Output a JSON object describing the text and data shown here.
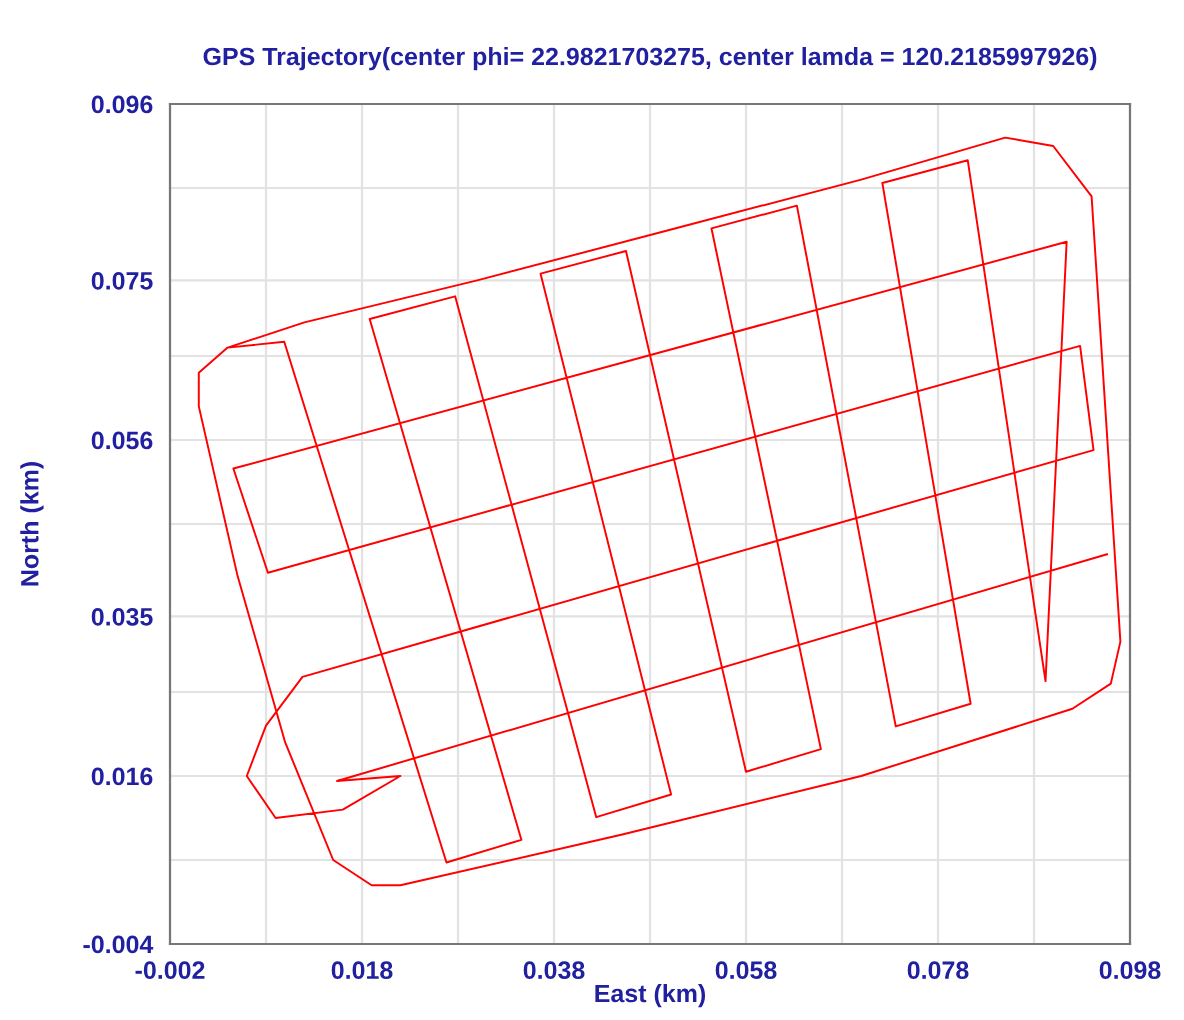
{
  "chart_data": {
    "type": "line",
    "title": "GPS Trajectory(center phi= 22.9821703275, center lamda = 120.2185997926)",
    "xlabel": "East (km)",
    "ylabel": "North (km)",
    "xlim": [
      -0.002,
      0.098
    ],
    "ylim": [
      -0.004,
      0.096
    ],
    "xticks": [
      -0.002,
      {
        "value": 0.008,
        "label": null
      },
      0.018,
      {
        "value": 0.028,
        "label": null
      },
      0.038,
      {
        "value": 0.048,
        "label": null
      },
      0.058,
      {
        "value": 0.068,
        "label": null
      },
      0.078,
      {
        "value": 0.088,
        "label": null
      },
      0.098
    ],
    "yticks": [
      -0.004,
      {
        "value": 0.006,
        "label": null
      },
      0.016,
      {
        "value": 0.026,
        "label": null
      },
      0.035,
      {
        "value": 0.046,
        "label": null
      },
      0.056,
      {
        "value": 0.066,
        "label": null
      },
      0.075,
      {
        "value": 0.086,
        "label": null
      },
      0.096
    ],
    "grid": true,
    "marker": "none",
    "line_style": "solid",
    "series": [
      {
        "color": "#ff0000",
        "x": [
          0.004,
          0.012,
          0.03,
          0.05,
          0.07,
          0.085,
          0.09,
          0.094,
          0.097,
          0.096,
          0.092,
          0.07,
          0.045,
          0.022,
          0.019,
          0.015,
          0.01,
          0.005,
          0.001,
          0.001,
          0.004,
          0.0099,
          0.0268,
          0.0346,
          0.0188,
          0.0277,
          0.0424,
          0.0502,
          0.0366,
          0.0455,
          0.058,
          0.0658,
          0.0544,
          0.0633,
          0.0736,
          0.0814,
          0.0722,
          0.0811,
          0.0892,
          0.0914,
          0.0046,
          0.0082,
          0.0928,
          0.0942,
          0.0118,
          0.008,
          0.006,
          0.009,
          0.016,
          0.022,
          0.0154,
          0.0956
        ],
        "values": [
          0.067,
          0.07,
          0.075,
          0.081,
          0.087,
          0.092,
          0.091,
          0.085,
          0.032,
          0.027,
          0.024,
          0.016,
          0.009,
          0.003,
          0.003,
          0.006,
          0.02,
          0.04,
          0.06,
          0.064,
          0.067,
          0.0677,
          0.0057,
          0.0084,
          0.0704,
          0.0731,
          0.0111,
          0.0138,
          0.0758,
          0.0785,
          0.0165,
          0.0192,
          0.0812,
          0.0839,
          0.0219,
          0.0246,
          0.0866,
          0.0893,
          0.0273,
          0.0796,
          0.0526,
          0.0402,
          0.0672,
          0.0548,
          0.0278,
          0.022,
          0.016,
          0.011,
          0.012,
          0.016,
          0.0154,
          0.0424
        ]
      }
    ]
  }
}
